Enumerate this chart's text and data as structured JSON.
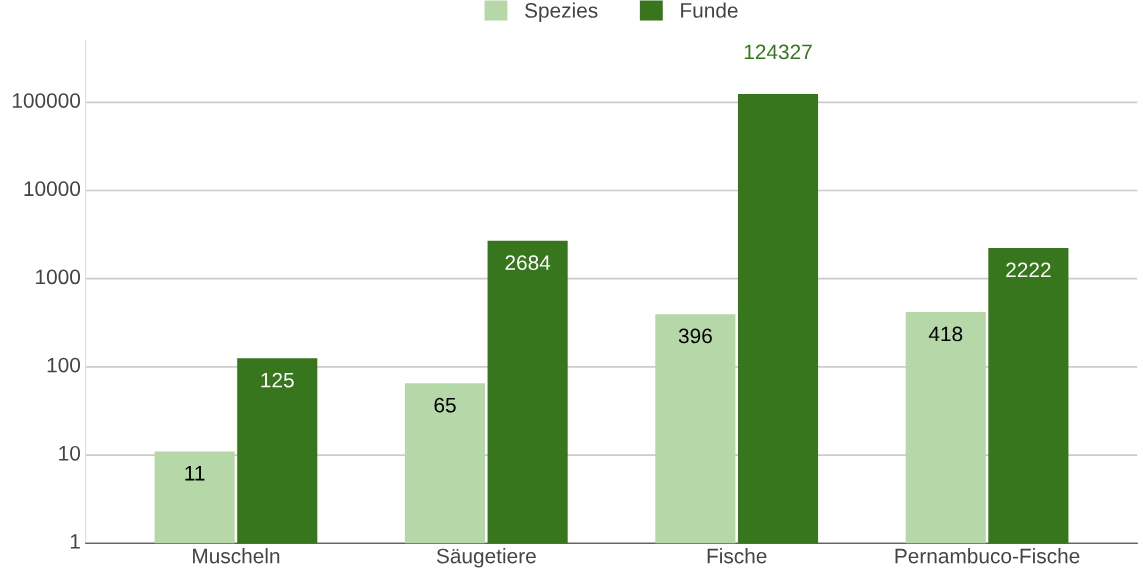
{
  "chart_data": {
    "type": "bar",
    "categories": [
      "Muscheln",
      "Säugetiere",
      "Fische",
      "Pernambuco-Fische"
    ],
    "series": [
      {
        "name": "Spezies",
        "color": "#b6d7a8",
        "values": [
          11,
          65,
          396,
          418
        ]
      },
      {
        "name": "Funde",
        "color": "#38761d",
        "values": [
          125,
          2684,
          124327,
          2222
        ]
      }
    ],
    "log": true,
    "ylim": [
      1,
      500000
    ],
    "yticks": [
      1,
      10,
      100,
      1000,
      10000,
      100000
    ],
    "grid": "y",
    "legend": "top",
    "data_labels": true
  }
}
